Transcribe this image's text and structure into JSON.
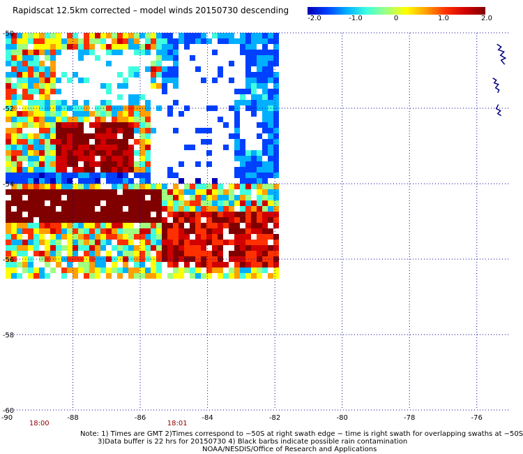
{
  "title": "Rapidscat 12.5km corrected – model winds 20150730 descending",
  "colorbar": {
    "ticks": [
      "-2.0",
      "-1.0",
      "0",
      "1.0",
      "2.0"
    ],
    "range": [
      -2.0,
      2.0
    ],
    "colors": [
      "#0000b4",
      "#0040ff",
      "#00b0ff",
      "#40ffe0",
      "#a0ff80",
      "#ffff00",
      "#ffa000",
      "#ff3000",
      "#d00000",
      "#800000"
    ]
  },
  "map": {
    "lon_ticks": [
      "-90",
      "-88",
      "-86",
      "-84",
      "-82",
      "-80",
      "-78",
      "-76"
    ],
    "lat_ticks": [
      "-50",
      "-52",
      "-54",
      "-56",
      "-58",
      "-60"
    ],
    "lon_range": [
      -90,
      -75
    ],
    "lat_range": [
      -60,
      -50
    ],
    "grid_color": "#0000a0",
    "coast_color": "#000080",
    "time_labels": [
      {
        "text": "18:00",
        "lon": -89
      },
      {
        "text": "18:01",
        "lon": -84.9
      }
    ],
    "time_label_color": "#8b0000",
    "swath": {
      "lon_range": [
        -90,
        -82
      ],
      "lat_range": [
        -56.5,
        -50
      ]
    }
  },
  "notes": [
    "Note: 1) Times are GMT 2)Times correspond to −50S at right swath edge − time is right swath for overlapping swaths at −50S",
    "3)Data buffer is 22 hrs for 20150730 4) Black barbs indicate possible rain contamination",
    "NOAA/NESDIS/Office of Research and Applications"
  ]
}
